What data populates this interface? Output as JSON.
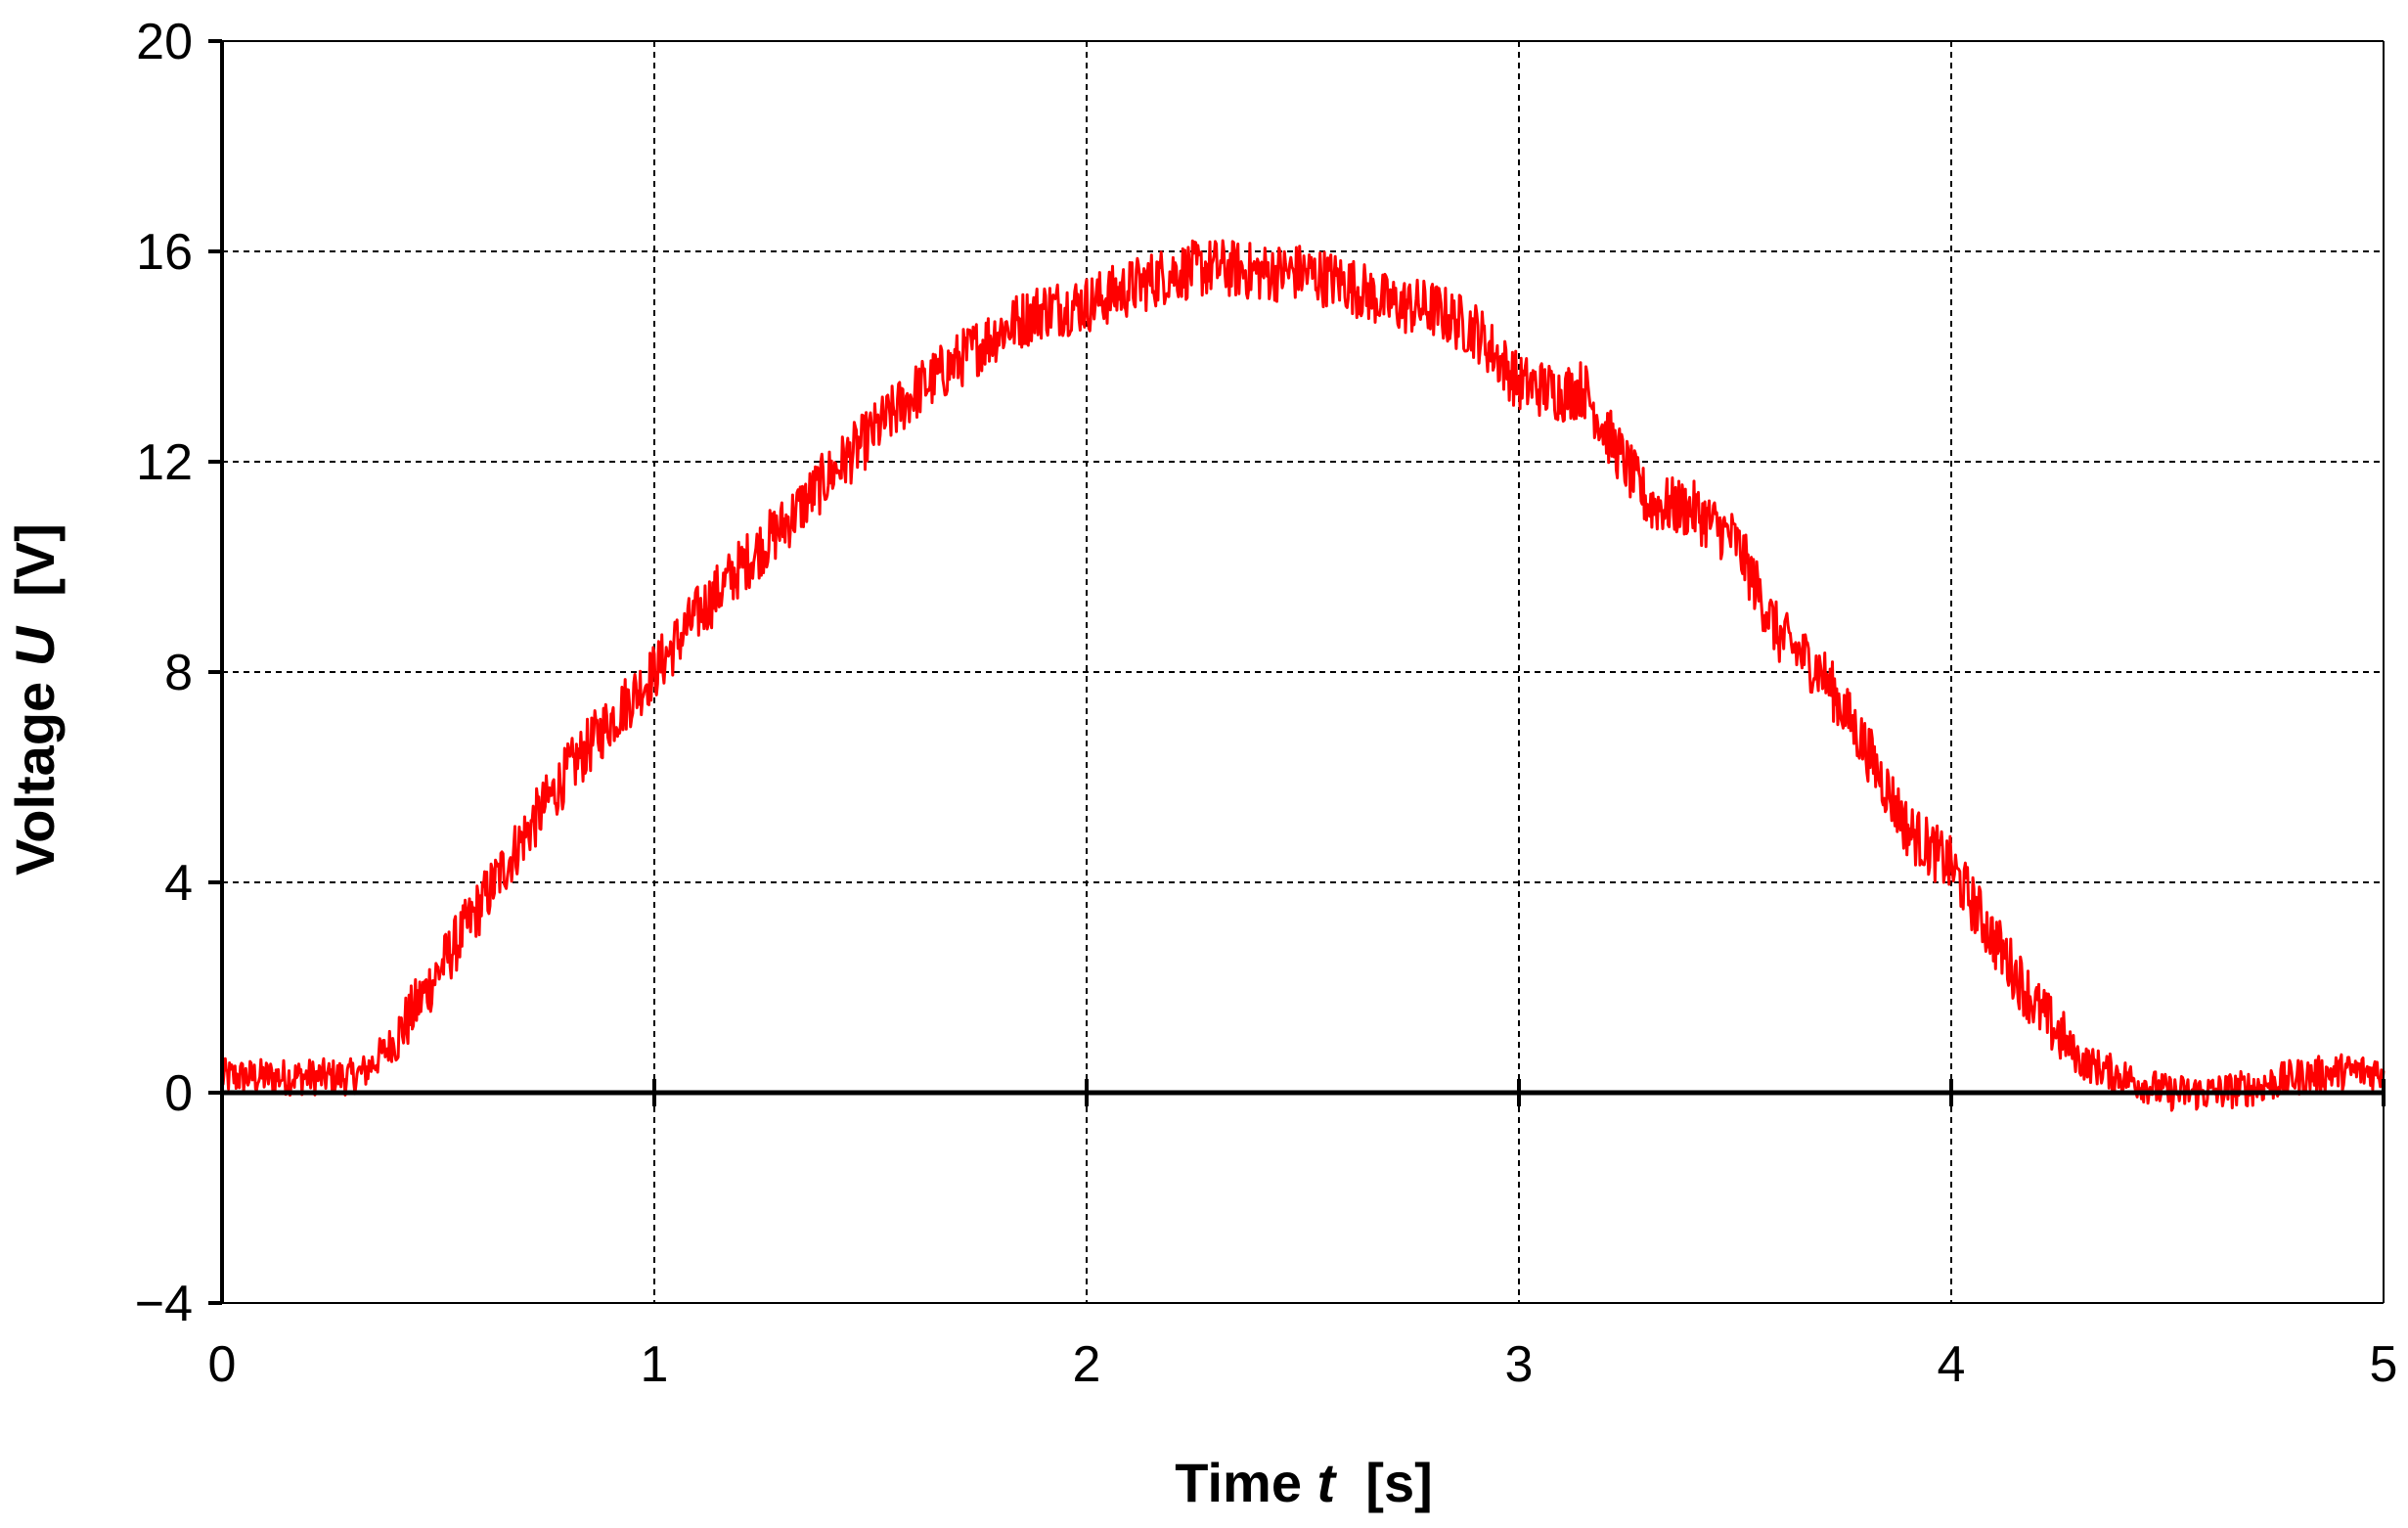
{
  "chart_data": {
    "type": "line",
    "title": "",
    "xlabel": {
      "prefix": "Time ",
      "symbol": "t",
      "unit": "  [s]"
    },
    "ylabel": {
      "prefix": "Voltage ",
      "symbol": "U",
      "unit": "  [V]"
    },
    "xlim": [
      0,
      5
    ],
    "ylim": [
      -4,
      20
    ],
    "xticks": [
      0,
      1,
      2,
      3,
      4,
      5
    ],
    "yticks": [
      -4,
      0,
      4,
      8,
      12,
      16,
      20
    ],
    "xtick_labels": [
      "0",
      "1",
      "2",
      "3",
      "4",
      "5"
    ],
    "ytick_labels": [
      "−4",
      "0",
      "4",
      "8",
      "12",
      "16",
      "20"
    ],
    "grid": true,
    "legend": "none",
    "series": [
      {
        "color": "#ff0000",
        "noise_amplitude": 0.35,
        "x": [
          0,
          0.1,
          0.2,
          0.3,
          0.33,
          0.4,
          0.5,
          0.6,
          0.7,
          0.8,
          0.9,
          1.0,
          1.1,
          1.2,
          1.3,
          1.4,
          1.5,
          1.6,
          1.7,
          1.8,
          1.9,
          2.0,
          2.1,
          2.2,
          2.3,
          2.4,
          2.5,
          2.6,
          2.7,
          2.8,
          2.9,
          3.0,
          3.1,
          3.15,
          3.2,
          3.3,
          3.4,
          3.5,
          3.6,
          3.7,
          3.8,
          3.9,
          4.0,
          4.1,
          4.2,
          4.3,
          4.4,
          4.5,
          4.6,
          4.7,
          4.8,
          4.9,
          5.0
        ],
        "y": [
          0.3,
          0.3,
          0.3,
          0.3,
          0.4,
          1.0,
          2.3,
          3.6,
          4.9,
          6.1,
          7.1,
          8.0,
          9.1,
          10.0,
          10.8,
          11.7,
          12.5,
          13.3,
          13.9,
          14.5,
          14.9,
          15.0,
          15.3,
          15.6,
          15.7,
          15.6,
          15.6,
          15.4,
          15.0,
          14.9,
          14.5,
          13.5,
          13.3,
          13.4,
          12.6,
          11.2,
          11.1,
          10.5,
          8.7,
          8.0,
          6.6,
          5.0,
          4.3,
          2.9,
          1.6,
          0.6,
          0.3,
          0.0,
          0.0,
          0.1,
          0.3,
          0.4,
          0.4
        ]
      }
    ]
  }
}
